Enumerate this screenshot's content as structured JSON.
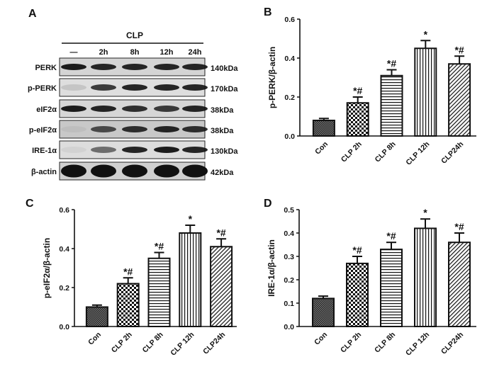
{
  "panel_a": {
    "letter": "A",
    "group_label": "CLP",
    "lanes": [
      "—",
      "2h",
      "8h",
      "12h",
      "24h"
    ],
    "rows": [
      {
        "protein": "PERK",
        "kda": "140kDa",
        "intensity": [
          0.95,
          0.9,
          0.9,
          0.9,
          0.9
        ],
        "bg": "#d4d4d4"
      },
      {
        "protein": "p-PERK",
        "kda": "170kDa",
        "intensity": [
          0.12,
          0.8,
          0.9,
          0.9,
          0.9
        ],
        "bg": "#dedede"
      },
      {
        "protein": "eIF2α",
        "kda": "38kDa",
        "intensity": [
          0.95,
          0.9,
          0.85,
          0.8,
          0.9
        ],
        "bg": "#d6d6d6"
      },
      {
        "protein": "p-eIF2α",
        "kda": "38kDa",
        "intensity": [
          0.05,
          0.7,
          0.85,
          0.9,
          0.85
        ],
        "bg": "#c8c8c8"
      },
      {
        "protein": "IRE-1α",
        "kda": "130kDa",
        "intensity": [
          0.05,
          0.55,
          0.9,
          0.95,
          0.9
        ],
        "bg": "#dddddd"
      },
      {
        "protein": "β-actin",
        "kda": "42kDa",
        "intensity": [
          1,
          1,
          1,
          1,
          1
        ],
        "bg": "#d0d0d0"
      }
    ]
  },
  "chart_data": [
    {
      "panel": "B",
      "type": "bar",
      "categories": [
        "Con",
        "CLP 2h",
        "CLP 8h",
        "CLP 12h",
        "CLP24h"
      ],
      "values": [
        0.08,
        0.17,
        0.31,
        0.45,
        0.37
      ],
      "errors": [
        0.01,
        0.03,
        0.03,
        0.04,
        0.04
      ],
      "annotations": [
        "",
        "*#",
        "*#",
        "*",
        "*#"
      ],
      "ylabel": "p-PERK/β-actin",
      "ylim": [
        0,
        0.6
      ],
      "yticks": [
        "0.0",
        "0.2",
        "0.4",
        "0.6"
      ]
    },
    {
      "panel": "C",
      "type": "bar",
      "categories": [
        "Con",
        "CLP 2h",
        "CLP 8h",
        "CLP 12h",
        "CLP24h"
      ],
      "values": [
        0.1,
        0.22,
        0.35,
        0.48,
        0.41
      ],
      "errors": [
        0.01,
        0.03,
        0.03,
        0.04,
        0.04
      ],
      "annotations": [
        "",
        "*#",
        "*#",
        "*",
        "*#"
      ],
      "ylabel": "p-eIF2α/β-actin",
      "ylim": [
        0,
        0.6
      ],
      "yticks": [
        "0.0",
        "0.2",
        "0.4",
        "0.6"
      ]
    },
    {
      "panel": "D",
      "type": "bar",
      "categories": [
        "Con",
        "CLP 2h",
        "CLP 8h",
        "CLP 12h",
        "CLP24h"
      ],
      "values": [
        0.12,
        0.27,
        0.33,
        0.42,
        0.36
      ],
      "errors": [
        0.01,
        0.03,
        0.03,
        0.04,
        0.04
      ],
      "annotations": [
        "",
        "*#",
        "*#",
        "*",
        "*#"
      ],
      "ylabel": "IRE-1α/β-actin",
      "ylim": [
        0,
        0.5
      ],
      "yticks": [
        "0.0",
        "0.1",
        "0.2",
        "0.3",
        "0.4",
        "0.5"
      ]
    }
  ]
}
